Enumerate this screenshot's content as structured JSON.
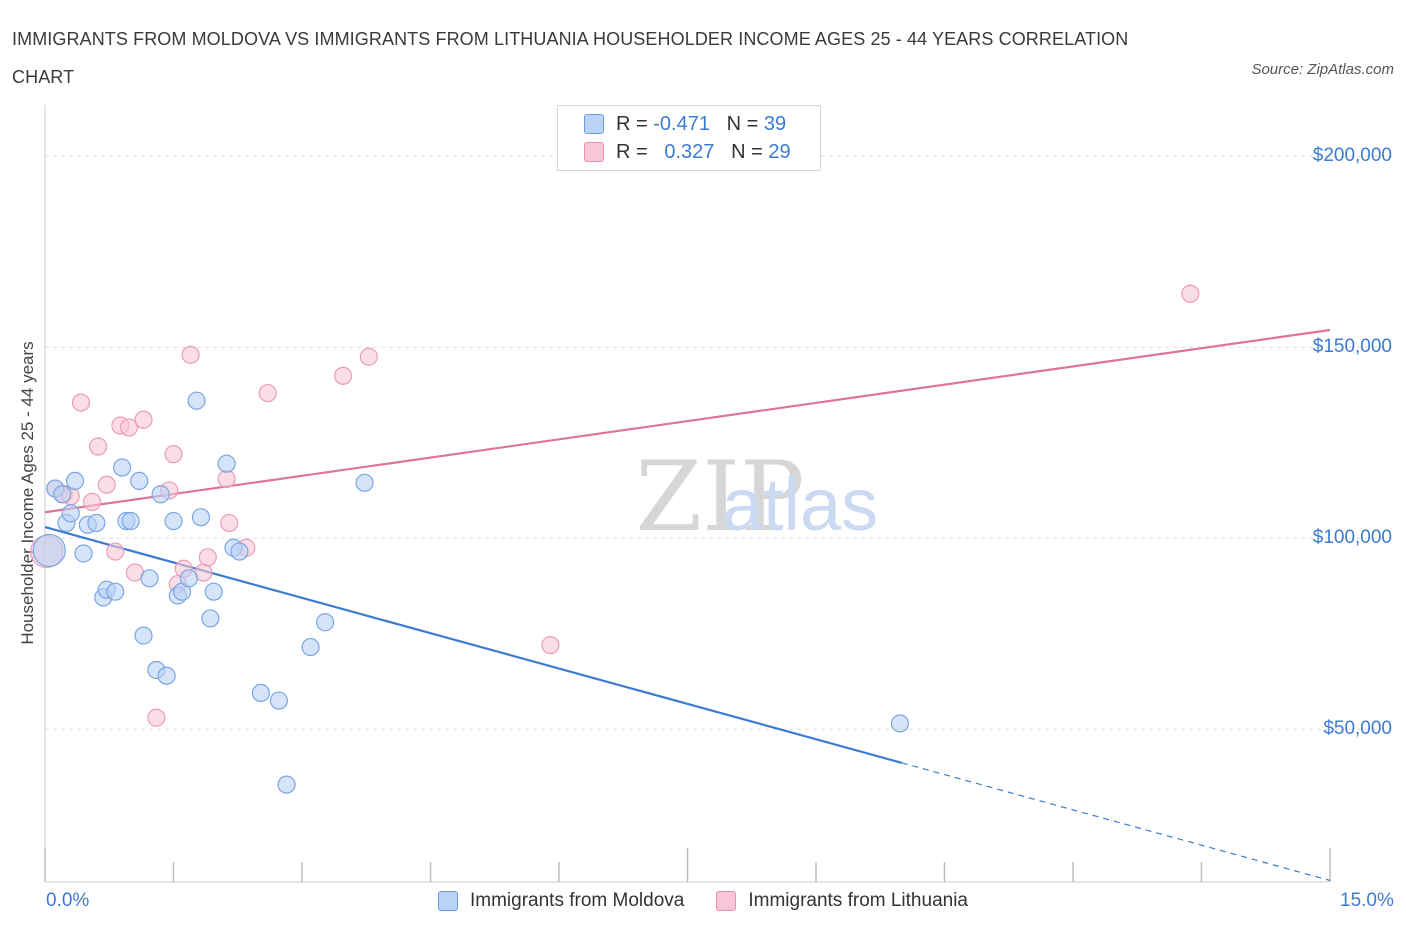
{
  "title": "IMMIGRANTS FROM MOLDOVA VS IMMIGRANTS FROM LITHUANIA HOUSEHOLDER INCOME AGES 25 - 44 YEARS CORRELATION CHART",
  "source": "Source: ZipAtlas.com",
  "legend": {
    "r_label": "R =",
    "n_label": "N =",
    "rows": [
      {
        "r": "-0.471",
        "n": "39"
      },
      {
        "r": "0.327",
        "n": "29"
      }
    ]
  },
  "colors": {
    "moldova": "#3d7bd0",
    "lithuania": "#e0739a",
    "moldova_fill": "#b9d2f5",
    "lithuania_fill": "#f8c6d6"
  },
  "chart_data": {
    "type": "scatter",
    "title": "IMMIGRANTS FROM MOLDOVA VS IMMIGRANTS FROM LITHUANIA HOUSEHOLDER INCOME AGES 25 - 44 YEARS CORRELATION CHART",
    "xlabel": "",
    "ylabel": "Householder Income Ages 25 - 44 years",
    "xlim": [
      0,
      15
    ],
    "ylim": [
      10000,
      210000
    ],
    "x_tick_labels": [
      "0.0%",
      "15.0%"
    ],
    "y_tick_labels": [
      "$50,000",
      "$100,000",
      "$150,000",
      "$200,000"
    ],
    "y_ticks": [
      50000,
      100000,
      150000,
      200000
    ],
    "grid": "horizontal dashed",
    "watermark": "ZIPatlas",
    "series": [
      {
        "name": "Immigrants from Moldova",
        "r": -0.471,
        "n": 39,
        "trend": {
          "x0": 0,
          "y0": 102900,
          "x1": 10.0,
          "y1": 41200,
          "dashed_to_x": 15.0,
          "dashed_to_y": 10400
        },
        "points": [
          [
            0.05,
            96800
          ],
          [
            0.12,
            113000
          ],
          [
            0.2,
            111500
          ],
          [
            0.25,
            104000
          ],
          [
            0.3,
            106500
          ],
          [
            0.35,
            115000
          ],
          [
            0.45,
            96000
          ],
          [
            0.5,
            103500
          ],
          [
            0.6,
            104000
          ],
          [
            0.68,
            84500
          ],
          [
            0.72,
            86500
          ],
          [
            0.82,
            86000
          ],
          [
            0.9,
            118500
          ],
          [
            0.95,
            104500
          ],
          [
            1.0,
            104500
          ],
          [
            1.1,
            115000
          ],
          [
            1.15,
            74500
          ],
          [
            1.22,
            89500
          ],
          [
            1.3,
            65500
          ],
          [
            1.35,
            111500
          ],
          [
            1.42,
            64000
          ],
          [
            1.5,
            104500
          ],
          [
            1.55,
            85000
          ],
          [
            1.6,
            86000
          ],
          [
            1.68,
            89500
          ],
          [
            1.77,
            136000
          ],
          [
            1.82,
            105500
          ],
          [
            1.93,
            79000
          ],
          [
            1.97,
            86000
          ],
          [
            2.12,
            119500
          ],
          [
            2.2,
            97500
          ],
          [
            2.27,
            96500
          ],
          [
            2.52,
            59500
          ],
          [
            2.73,
            57500
          ],
          [
            2.82,
            35500
          ],
          [
            3.1,
            71500
          ],
          [
            3.27,
            78000
          ],
          [
            3.73,
            114500
          ],
          [
            9.98,
            51500
          ]
        ]
      },
      {
        "name": "Immigrants from Lithuania",
        "r": 0.327,
        "n": 29,
        "trend": {
          "x0": 0,
          "y0": 106800,
          "x1": 15.0,
          "y1": 154500
        },
        "points": [
          [
            0.02,
            96500
          ],
          [
            0.12,
            113000
          ],
          [
            0.22,
            111500
          ],
          [
            0.3,
            111000
          ],
          [
            0.42,
            135500
          ],
          [
            0.55,
            109500
          ],
          [
            0.62,
            124000
          ],
          [
            0.72,
            114000
          ],
          [
            0.82,
            96500
          ],
          [
            0.88,
            129500
          ],
          [
            0.98,
            129000
          ],
          [
            1.05,
            91000
          ],
          [
            1.15,
            131000
          ],
          [
            1.3,
            53000
          ],
          [
            1.45,
            112500
          ],
          [
            1.5,
            122000
          ],
          [
            1.55,
            88000
          ],
          [
            1.62,
            92000
          ],
          [
            1.7,
            148000
          ],
          [
            1.85,
            91000
          ],
          [
            1.9,
            95000
          ],
          [
            2.12,
            115500
          ],
          [
            2.15,
            104000
          ],
          [
            2.35,
            97500
          ],
          [
            2.6,
            138000
          ],
          [
            3.48,
            142500
          ],
          [
            3.78,
            147500
          ],
          [
            5.9,
            72000
          ],
          [
            13.37,
            164000
          ]
        ]
      }
    ]
  }
}
